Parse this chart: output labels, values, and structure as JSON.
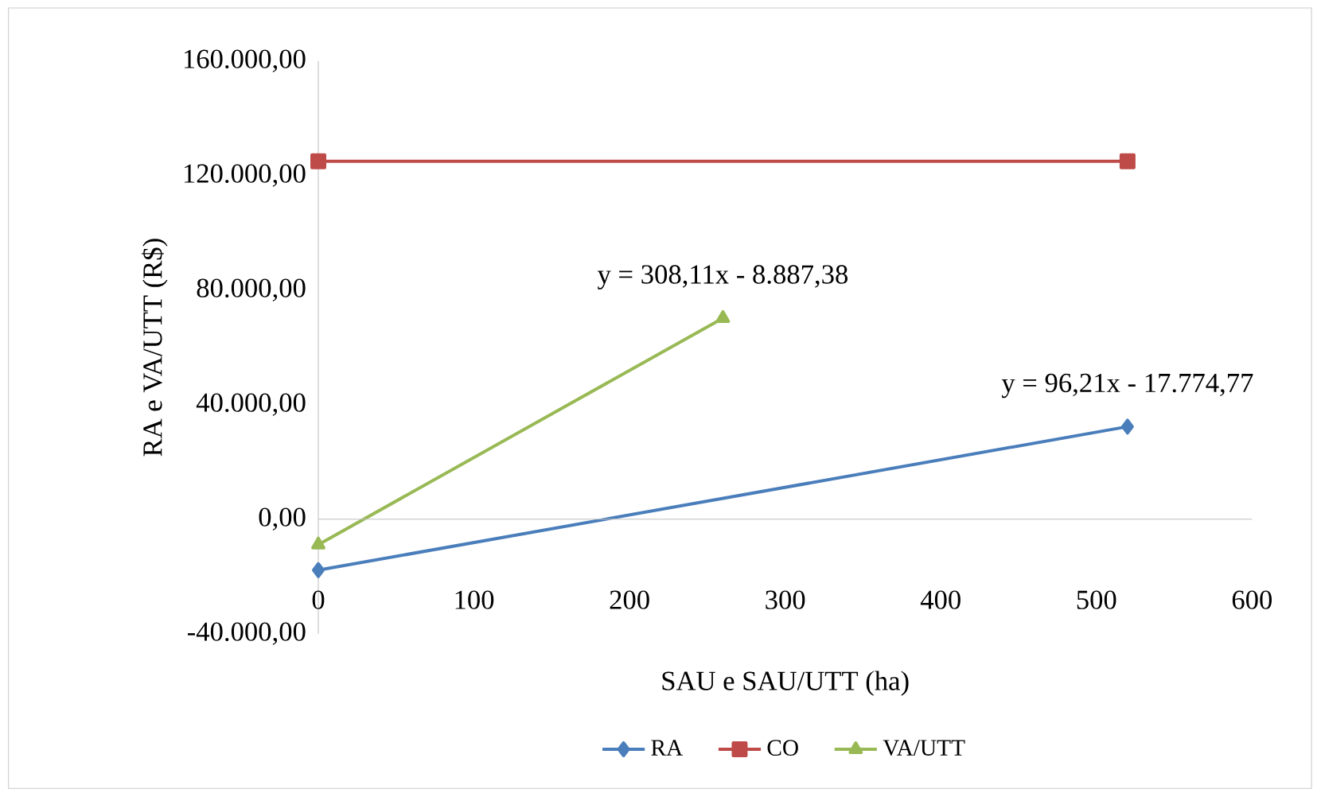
{
  "chart_data": {
    "type": "line",
    "xlabel": "SAU e SAU/UTT  (ha)",
    "ylabel": "RA e VA/UTT  (R$)",
    "xlim": [
      0,
      600
    ],
    "xticks": [
      0,
      100,
      200,
      300,
      400,
      500,
      600
    ],
    "ylim": [
      -40000,
      160000
    ],
    "yticks": [
      {
        "value": -40000,
        "label": "-40.000,00"
      },
      {
        "value": 0,
        "label": "0,00"
      },
      {
        "value": 40000,
        "label": "40.000,00"
      },
      {
        "value": 80000,
        "label": "80.000,00"
      },
      {
        "value": 120000,
        "label": "120.000,00"
      },
      {
        "value": 160000,
        "label": "160.000,00"
      }
    ],
    "series": [
      {
        "name": "RA",
        "color": "#4a7ebb",
        "marker": "diamond",
        "x": [
          0,
          520
        ],
        "values": [
          -17800,
          32300
        ]
      },
      {
        "name": "CO",
        "color": "#be4b48",
        "marker": "square",
        "x": [
          0,
          520
        ],
        "values": [
          125000,
          125000
        ]
      },
      {
        "name": "VA/UTT",
        "color": "#98b954",
        "marker": "triangle",
        "x": [
          0,
          260
        ],
        "values": [
          -8900,
          70200
        ]
      }
    ],
    "annotations": [
      {
        "text": "y = 308,11x - 8.887,38",
        "x": 260,
        "y": 70200
      },
      {
        "text": "y = 96,21x - 17.774,77",
        "x": 520,
        "y": 32300
      }
    ],
    "grid": false,
    "legend": "bottom"
  }
}
